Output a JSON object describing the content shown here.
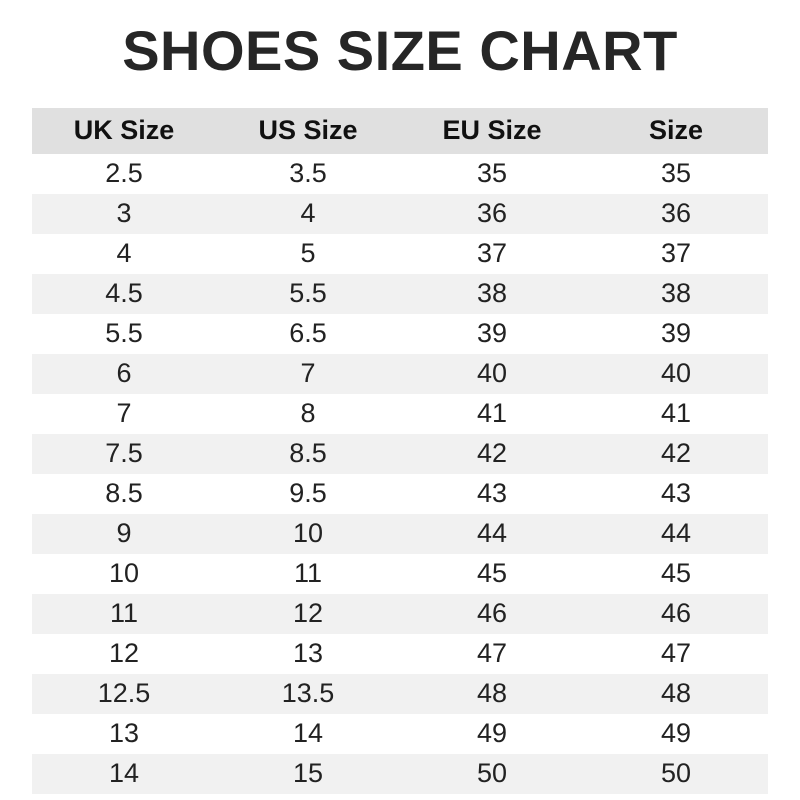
{
  "title": "SHOES SIZE CHART",
  "colors": {
    "header_bg": "#e0e0e0",
    "alt_row_bg": "#f1f1f1",
    "title_color": "#262626",
    "text_color": "#222222"
  },
  "chart_data": {
    "type": "table",
    "title": "SHOES SIZE CHART",
    "columns": [
      "UK Size",
      "US Size",
      "EU Size",
      "Size"
    ],
    "rows": [
      [
        "2.5",
        "3.5",
        "35",
        "35"
      ],
      [
        "3",
        "4",
        "36",
        "36"
      ],
      [
        "4",
        "5",
        "37",
        "37"
      ],
      [
        "4.5",
        "5.5",
        "38",
        "38"
      ],
      [
        "5.5",
        "6.5",
        "39",
        "39"
      ],
      [
        "6",
        "7",
        "40",
        "40"
      ],
      [
        "7",
        "8",
        "41",
        "41"
      ],
      [
        "7.5",
        "8.5",
        "42",
        "42"
      ],
      [
        "8.5",
        "9.5",
        "43",
        "43"
      ],
      [
        "9",
        "10",
        "44",
        "44"
      ],
      [
        "10",
        "11",
        "45",
        "45"
      ],
      [
        "11",
        "12",
        "46",
        "46"
      ],
      [
        "12",
        "13",
        "47",
        "47"
      ],
      [
        "12.5",
        "13.5",
        "48",
        "48"
      ],
      [
        "13",
        "14",
        "49",
        "49"
      ],
      [
        "14",
        "15",
        "50",
        "50"
      ]
    ],
    "layout": {
      "column_alignment": "center",
      "alternating_rows": true,
      "grid": false
    }
  }
}
